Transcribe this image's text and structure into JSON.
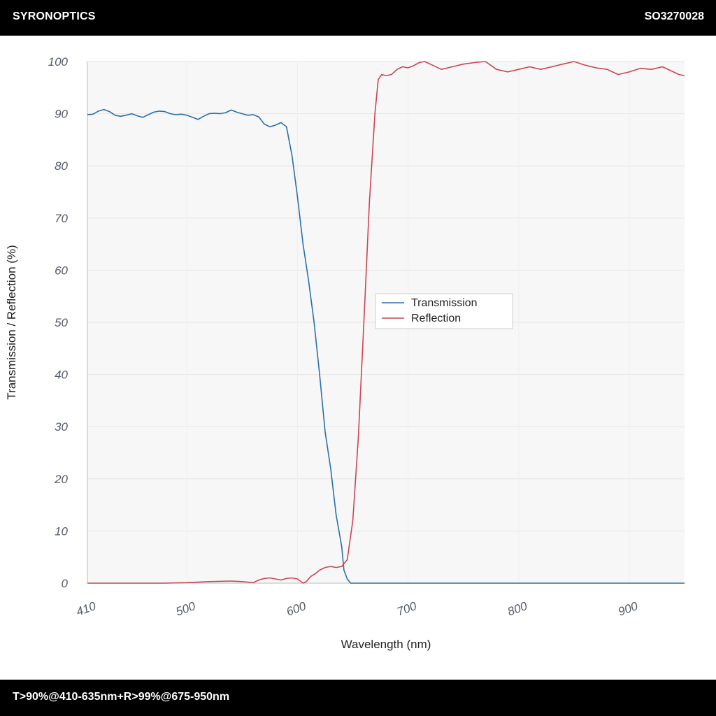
{
  "header": {
    "brand": "SYRONOPTICS",
    "code": "SO3270028"
  },
  "footer": {
    "spec": "T>90%@410-635nm+R>99%@675-950nm"
  },
  "colors": {
    "transmission": "#2a70a8",
    "reflection": "#cc4455",
    "plot_bg": "#f7f7f7",
    "grid": "#e6e6e6"
  },
  "chart_data": {
    "type": "line",
    "title": "",
    "xlabel": "Wavelength (nm)",
    "ylabel": "Transmission / Reflection (%)",
    "xlim": [
      410,
      950
    ],
    "ylim": [
      0,
      100
    ],
    "xticks": [
      410,
      500,
      600,
      700,
      800,
      900
    ],
    "yticks": [
      0,
      10,
      20,
      30,
      40,
      50,
      60,
      70,
      80,
      90,
      100
    ],
    "grid": true,
    "legend_position": "center",
    "series": [
      {
        "name": "Transmission",
        "x": [
          410,
          415,
          420,
          425,
          430,
          435,
          440,
          445,
          450,
          455,
          460,
          465,
          470,
          475,
          480,
          485,
          490,
          495,
          500,
          505,
          510,
          515,
          520,
          525,
          530,
          535,
          540,
          545,
          550,
          555,
          560,
          565,
          570,
          575,
          580,
          585,
          590,
          595,
          600,
          605,
          610,
          615,
          620,
          625,
          630,
          635,
          640,
          642,
          645,
          648,
          650,
          652,
          655,
          658,
          660,
          663,
          666,
          670,
          673,
          676,
          678,
          680,
          685,
          690,
          695,
          700,
          750,
          800,
          850,
          900,
          950
        ],
        "y": [
          89.8,
          89.9,
          90.5,
          90.8,
          90.4,
          89.7,
          89.5,
          89.7,
          90.0,
          89.6,
          89.3,
          89.8,
          90.3,
          90.5,
          90.4,
          90.0,
          89.8,
          89.9,
          89.7,
          89.3,
          88.9,
          89.5,
          90.0,
          90.1,
          90.0,
          90.2,
          90.7,
          90.3,
          90.0,
          89.7,
          89.8,
          89.4,
          88.0,
          87.5,
          87.8,
          88.3,
          87.5,
          82.0,
          74.0,
          65.0,
          58.0,
          50.0,
          40.0,
          29.0,
          22.0,
          13.0,
          7.0,
          2.5,
          0.8,
          0.0,
          0.0,
          0.0,
          0.0,
          0.0,
          0.0,
          0.0,
          0.0,
          0.0,
          0.0,
          0.0,
          0.0,
          0.0,
          0.0,
          0.0,
          0.0,
          0.0,
          0.0,
          0.0,
          0.0,
          0.0,
          0.0
        ]
      },
      {
        "name": "Reflection",
        "x": [
          410,
          450,
          480,
          500,
          520,
          540,
          550,
          555,
          560,
          565,
          570,
          575,
          580,
          585,
          590,
          595,
          600,
          605,
          608,
          612,
          616,
          620,
          625,
          630,
          635,
          640,
          645,
          650,
          655,
          660,
          665,
          670,
          673,
          676,
          680,
          685,
          690,
          695,
          700,
          705,
          710,
          715,
          720,
          730,
          740,
          750,
          760,
          770,
          780,
          790,
          800,
          810,
          820,
          830,
          840,
          850,
          860,
          870,
          880,
          890,
          900,
          910,
          920,
          930,
          940,
          945,
          950
        ],
        "y": [
          0.0,
          0.0,
          0.0,
          0.1,
          0.3,
          0.4,
          0.3,
          0.2,
          0.1,
          0.6,
          0.9,
          1.0,
          0.8,
          0.6,
          0.9,
          1.0,
          0.8,
          0.0,
          0.3,
          1.3,
          1.8,
          2.5,
          3.0,
          3.2,
          3.0,
          3.2,
          4.5,
          12.0,
          28.0,
          50.0,
          73.0,
          90.0,
          96.5,
          97.5,
          97.3,
          97.5,
          98.5,
          99.0,
          98.8,
          99.2,
          99.8,
          100.0,
          99.5,
          98.5,
          99.0,
          99.5,
          99.8,
          100.0,
          98.5,
          98.0,
          98.5,
          99.0,
          98.5,
          99.0,
          99.5,
          100.0,
          99.3,
          98.8,
          98.5,
          97.5,
          98.0,
          98.7,
          98.5,
          99.0,
          98.0,
          97.5,
          97.3
        ]
      }
    ]
  }
}
